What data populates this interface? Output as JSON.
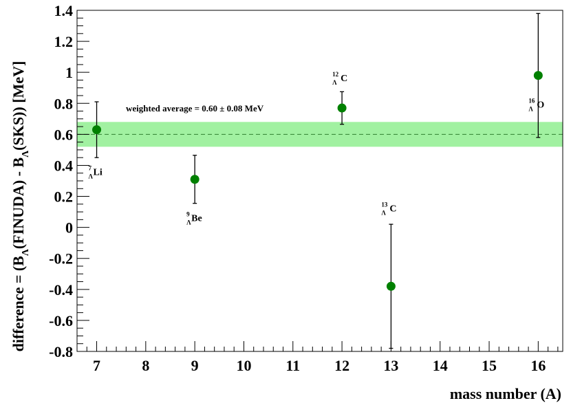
{
  "chart_data": {
    "type": "scatter",
    "title": "",
    "xlabel": "mass number (A)",
    "ylabel_parts": {
      "prefix": "difference = (B",
      "sub1": "Λ",
      "middle": "(FINUDA) - B",
      "sub2": "Λ",
      "suffix": "(SKS))   [MeV]"
    },
    "xlim": [
      6.6,
      16.5
    ],
    "ylim": [
      -0.8,
      1.4
    ],
    "x_ticks": [
      7,
      8,
      9,
      10,
      11,
      12,
      13,
      14,
      15,
      16
    ],
    "x_tick_labels": [
      "7",
      "8",
      "9",
      "10",
      "11",
      "12",
      "13",
      "14",
      "15",
      "16"
    ],
    "y_ticks": [
      -0.8,
      -0.6,
      -0.4,
      -0.2,
      0,
      0.2,
      0.4,
      0.6,
      0.8,
      1,
      1.2,
      1.4
    ],
    "y_tick_labels": [
      "-0.8",
      "-0.6",
      "-0.4",
      "-0.2",
      "0",
      "0.2",
      "0.4",
      "0.6",
      "0.8",
      "1",
      "1.2",
      "1.4"
    ],
    "grid": false,
    "marker_color": "#008000",
    "band_color": "#90ee90",
    "points": [
      {
        "x": 7,
        "y": 0.63,
        "err": 0.18,
        "mass": "7",
        "lambda": "Λ",
        "element": "Li"
      },
      {
        "x": 9,
        "y": 0.31,
        "err": 0.155,
        "mass": "9",
        "lambda": "Λ",
        "element": "Be"
      },
      {
        "x": 12,
        "y": 0.77,
        "err": 0.105,
        "mass": "12",
        "lambda": "Λ",
        "element": "C"
      },
      {
        "x": 13,
        "y": -0.38,
        "err": 0.4,
        "mass": "13",
        "lambda": "Λ",
        "element": "C"
      },
      {
        "x": 16,
        "y": 0.98,
        "err": 0.4,
        "mass": "16",
        "lambda": "Λ",
        "element": "O"
      }
    ],
    "weighted_average": {
      "value": 0.6,
      "error": 0.08,
      "label": "weighted average = 0.60  ± 0.08 MeV"
    }
  }
}
